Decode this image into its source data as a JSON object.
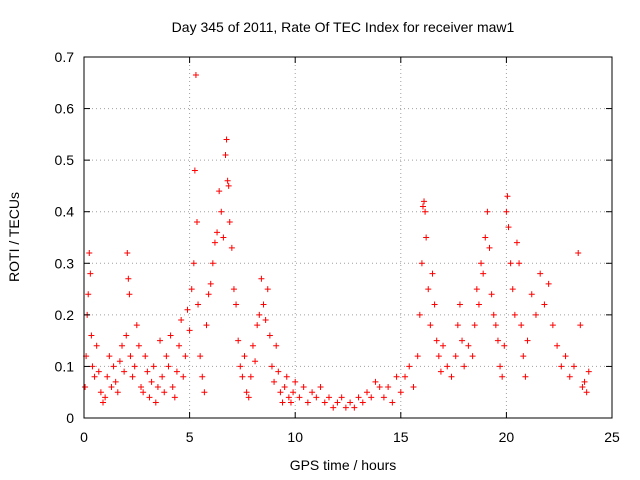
{
  "chart_data": {
    "type": "scatter",
    "title": "Day 345 of 2011, Rate Of TEC Index for receiver maw1",
    "xlabel": "GPS time / hours",
    "ylabel": "ROTI / TECUs",
    "xlim": [
      0,
      25
    ],
    "ylim": [
      0,
      0.7
    ],
    "xticks": [
      0,
      5,
      10,
      15,
      20,
      25
    ],
    "yticks": [
      0,
      0.1,
      0.2,
      0.3,
      0.4,
      0.5,
      0.6,
      0.7
    ],
    "xtick_labels": [
      "0",
      "5",
      "10",
      "15",
      "20",
      "25"
    ],
    "ytick_labels": [
      "0",
      "0.1",
      "0.2",
      "0.3",
      "0.4",
      "0.5",
      "0.6",
      "0.7"
    ],
    "grid": true,
    "marker": "plus",
    "color": "#ff0000",
    "series": [
      {
        "points": [
          [
            0.05,
            0.06
          ],
          [
            0.1,
            0.12
          ],
          [
            0.15,
            0.2
          ],
          [
            0.2,
            0.24
          ],
          [
            0.25,
            0.32
          ],
          [
            0.3,
            0.28
          ],
          [
            0.35,
            0.16
          ],
          [
            0.4,
            0.1
          ],
          [
            0.5,
            0.08
          ],
          [
            0.6,
            0.14
          ],
          [
            0.7,
            0.09
          ],
          [
            0.8,
            0.05
          ],
          [
            0.9,
            0.03
          ],
          [
            1.0,
            0.04
          ],
          [
            1.1,
            0.08
          ],
          [
            1.2,
            0.12
          ],
          [
            1.3,
            0.06
          ],
          [
            1.4,
            0.1
          ],
          [
            1.5,
            0.07
          ],
          [
            1.6,
            0.05
          ],
          [
            1.7,
            0.11
          ],
          [
            1.8,
            0.14
          ],
          [
            1.9,
            0.09
          ],
          [
            2.0,
            0.16
          ],
          [
            2.05,
            0.32
          ],
          [
            2.1,
            0.27
          ],
          [
            2.15,
            0.24
          ],
          [
            2.2,
            0.12
          ],
          [
            2.3,
            0.08
          ],
          [
            2.4,
            0.1
          ],
          [
            2.5,
            0.18
          ],
          [
            2.6,
            0.14
          ],
          [
            2.7,
            0.06
          ],
          [
            2.8,
            0.05
          ],
          [
            2.9,
            0.12
          ],
          [
            3.0,
            0.09
          ],
          [
            3.1,
            0.04
          ],
          [
            3.2,
            0.07
          ],
          [
            3.3,
            0.1
          ],
          [
            3.4,
            0.03
          ],
          [
            3.5,
            0.06
          ],
          [
            3.6,
            0.15
          ],
          [
            3.7,
            0.08
          ],
          [
            3.8,
            0.05
          ],
          [
            3.9,
            0.12
          ],
          [
            4.0,
            0.1
          ],
          [
            4.1,
            0.16
          ],
          [
            4.2,
            0.06
          ],
          [
            4.3,
            0.04
          ],
          [
            4.4,
            0.09
          ],
          [
            4.5,
            0.14
          ],
          [
            4.6,
            0.19
          ],
          [
            4.7,
            0.08
          ],
          [
            4.8,
            0.12
          ],
          [
            4.9,
            0.21
          ],
          [
            5.0,
            0.17
          ],
          [
            5.1,
            0.25
          ],
          [
            5.2,
            0.3
          ],
          [
            5.25,
            0.48
          ],
          [
            5.3,
            0.665
          ],
          [
            5.35,
            0.38
          ],
          [
            5.4,
            0.22
          ],
          [
            5.5,
            0.12
          ],
          [
            5.6,
            0.08
          ],
          [
            5.7,
            0.05
          ],
          [
            5.8,
            0.18
          ],
          [
            5.9,
            0.24
          ],
          [
            6.0,
            0.26
          ],
          [
            6.1,
            0.3
          ],
          [
            6.2,
            0.34
          ],
          [
            6.3,
            0.36
          ],
          [
            6.4,
            0.44
          ],
          [
            6.5,
            0.4
          ],
          [
            6.6,
            0.35
          ],
          [
            6.7,
            0.51
          ],
          [
            6.75,
            0.54
          ],
          [
            6.8,
            0.46
          ],
          [
            6.85,
            0.45
          ],
          [
            6.9,
            0.38
          ],
          [
            7.0,
            0.33
          ],
          [
            7.1,
            0.25
          ],
          [
            7.2,
            0.22
          ],
          [
            7.3,
            0.15
          ],
          [
            7.4,
            0.1
          ],
          [
            7.5,
            0.08
          ],
          [
            7.6,
            0.12
          ],
          [
            7.7,
            0.05
          ],
          [
            7.8,
            0.04
          ],
          [
            7.9,
            0.08
          ],
          [
            8.0,
            0.14
          ],
          [
            8.1,
            0.11
          ],
          [
            8.2,
            0.18
          ],
          [
            8.3,
            0.2
          ],
          [
            8.4,
            0.27
          ],
          [
            8.5,
            0.22
          ],
          [
            8.6,
            0.19
          ],
          [
            8.7,
            0.25
          ],
          [
            8.8,
            0.16
          ],
          [
            8.9,
            0.1
          ],
          [
            9.0,
            0.07
          ],
          [
            9.1,
            0.14
          ],
          [
            9.2,
            0.09
          ],
          [
            9.3,
            0.05
          ],
          [
            9.4,
            0.03
          ],
          [
            9.5,
            0.06
          ],
          [
            9.6,
            0.08
          ],
          [
            9.7,
            0.04
          ],
          [
            9.8,
            0.03
          ],
          [
            9.9,
            0.05
          ],
          [
            10.0,
            0.07
          ],
          [
            10.2,
            0.04
          ],
          [
            10.4,
            0.06
          ],
          [
            10.6,
            0.03
          ],
          [
            10.8,
            0.05
          ],
          [
            11.0,
            0.04
          ],
          [
            11.2,
            0.06
          ],
          [
            11.4,
            0.03
          ],
          [
            11.6,
            0.04
          ],
          [
            11.8,
            0.02
          ],
          [
            12.0,
            0.03
          ],
          [
            12.2,
            0.04
          ],
          [
            12.4,
            0.02
          ],
          [
            12.6,
            0.03
          ],
          [
            12.8,
            0.02
          ],
          [
            13.0,
            0.04
          ],
          [
            13.2,
            0.03
          ],
          [
            13.4,
            0.05
          ],
          [
            13.6,
            0.04
          ],
          [
            13.8,
            0.07
          ],
          [
            14.0,
            0.06
          ],
          [
            14.2,
            0.04
          ],
          [
            14.4,
            0.06
          ],
          [
            14.6,
            0.03
          ],
          [
            14.8,
            0.08
          ],
          [
            15.0,
            0.05
          ],
          [
            15.2,
            0.08
          ],
          [
            15.4,
            0.1
          ],
          [
            15.6,
            0.06
          ],
          [
            15.8,
            0.12
          ],
          [
            15.9,
            0.2
          ],
          [
            16.0,
            0.3
          ],
          [
            16.05,
            0.41
          ],
          [
            16.1,
            0.42
          ],
          [
            16.15,
            0.4
          ],
          [
            16.2,
            0.35
          ],
          [
            16.3,
            0.25
          ],
          [
            16.4,
            0.18
          ],
          [
            16.5,
            0.28
          ],
          [
            16.6,
            0.22
          ],
          [
            16.7,
            0.15
          ],
          [
            16.8,
            0.12
          ],
          [
            16.9,
            0.09
          ],
          [
            17.0,
            0.14
          ],
          [
            17.2,
            0.1
          ],
          [
            17.4,
            0.08
          ],
          [
            17.6,
            0.12
          ],
          [
            17.7,
            0.18
          ],
          [
            17.8,
            0.22
          ],
          [
            17.9,
            0.15
          ],
          [
            18.0,
            0.1
          ],
          [
            18.2,
            0.14
          ],
          [
            18.4,
            0.12
          ],
          [
            18.5,
            0.18
          ],
          [
            18.6,
            0.25
          ],
          [
            18.7,
            0.22
          ],
          [
            18.8,
            0.3
          ],
          [
            18.9,
            0.28
          ],
          [
            19.0,
            0.35
          ],
          [
            19.1,
            0.4
          ],
          [
            19.2,
            0.33
          ],
          [
            19.3,
            0.24
          ],
          [
            19.4,
            0.2
          ],
          [
            19.5,
            0.18
          ],
          [
            19.6,
            0.15
          ],
          [
            19.7,
            0.1
          ],
          [
            19.8,
            0.08
          ],
          [
            19.9,
            0.14
          ],
          [
            20.0,
            0.4
          ],
          [
            20.05,
            0.43
          ],
          [
            20.1,
            0.37
          ],
          [
            20.2,
            0.3
          ],
          [
            20.3,
            0.25
          ],
          [
            20.4,
            0.2
          ],
          [
            20.5,
            0.34
          ],
          [
            20.6,
            0.3
          ],
          [
            20.7,
            0.18
          ],
          [
            20.8,
            0.12
          ],
          [
            20.9,
            0.08
          ],
          [
            21.0,
            0.15
          ],
          [
            21.2,
            0.24
          ],
          [
            21.4,
            0.2
          ],
          [
            21.6,
            0.28
          ],
          [
            21.8,
            0.22
          ],
          [
            22.0,
            0.26
          ],
          [
            22.2,
            0.18
          ],
          [
            22.4,
            0.14
          ],
          [
            22.6,
            0.1
          ],
          [
            22.8,
            0.12
          ],
          [
            23.0,
            0.08
          ],
          [
            23.2,
            0.1
          ],
          [
            23.4,
            0.32
          ],
          [
            23.5,
            0.18
          ],
          [
            23.6,
            0.06
          ],
          [
            23.7,
            0.07
          ],
          [
            23.8,
            0.05
          ],
          [
            23.9,
            0.09
          ]
        ]
      }
    ]
  }
}
